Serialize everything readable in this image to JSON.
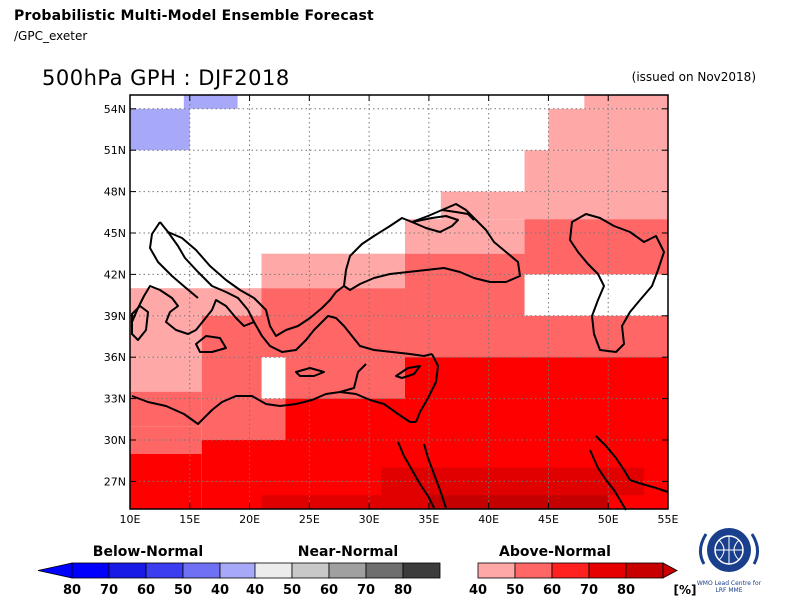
{
  "header": {
    "title": "Probabilistic Multi-Model Ensemble Forecast",
    "source": "/GPC_exeter",
    "variable_period": "500hPa GPH : DJF2018",
    "issued": "(issued on Nov2018)"
  },
  "map": {
    "lon_range": [
      10,
      55
    ],
    "lat_range": [
      25,
      55
    ],
    "lat_labels": [
      "54N",
      "51N",
      "48N",
      "45N",
      "42N",
      "39N",
      "36N",
      "33N",
      "30N",
      "27N"
    ],
    "lon_labels": [
      "10E",
      "15E",
      "20E",
      "25E",
      "30E",
      "35E",
      "40E",
      "45E",
      "50E",
      "55E"
    ],
    "grid": "dotted",
    "cells": [
      {
        "lon": [
          10,
          15
        ],
        "lat": [
          51,
          54
        ],
        "cat": "below",
        "level": "40-50"
      },
      {
        "lon": [
          14.5,
          19
        ],
        "lat": [
          54,
          55
        ],
        "cat": "below",
        "level": "40-50"
      },
      {
        "lon": [
          48,
          55
        ],
        "lat": [
          54,
          55
        ],
        "cat": "above",
        "level": "40-50"
      },
      {
        "lon": [
          45,
          55
        ],
        "lat": [
          51,
          54
        ],
        "cat": "above",
        "level": "40-50"
      },
      {
        "lon": [
          43,
          55
        ],
        "lat": [
          48,
          51
        ],
        "cat": "above",
        "level": "40-50"
      },
      {
        "lon": [
          36,
          55
        ],
        "lat": [
          46,
          48
        ],
        "cat": "above",
        "level": "40-50"
      },
      {
        "lon": [
          33,
          43
        ],
        "lat": [
          43.5,
          46
        ],
        "cat": "above",
        "level": "40-50"
      },
      {
        "lon": [
          21,
          33
        ],
        "lat": [
          41,
          43.5
        ],
        "cat": "above",
        "level": "40-50"
      },
      {
        "lon": [
          10,
          21
        ],
        "lat": [
          39,
          41
        ],
        "cat": "above",
        "level": "40-50"
      },
      {
        "lon": [
          10,
          16
        ],
        "lat": [
          33.5,
          36
        ],
        "cat": "above",
        "level": "40-50"
      },
      {
        "lon": [
          10,
          16
        ],
        "lat": [
          36,
          39
        ],
        "cat": "above",
        "level": "40-50"
      },
      {
        "lon": [
          43,
          55
        ],
        "lat": [
          42,
          46
        ],
        "cat": "above",
        "level": "50-60"
      },
      {
        "lon": [
          33,
          43
        ],
        "lat": [
          39,
          43.5
        ],
        "cat": "above",
        "level": "50-60"
      },
      {
        "lon": [
          21,
          33
        ],
        "lat": [
          36,
          41
        ],
        "cat": "above",
        "level": "50-60"
      },
      {
        "lon": [
          16,
          21
        ],
        "lat": [
          33,
          39
        ],
        "cat": "above",
        "level": "50-60"
      },
      {
        "lon": [
          10,
          16
        ],
        "lat": [
          31,
          33.5
        ],
        "cat": "above",
        "level": "50-60"
      },
      {
        "lon": [
          16,
          23
        ],
        "lat": [
          30,
          33
        ],
        "cat": "above",
        "level": "50-60"
      },
      {
        "lon": [
          10,
          16
        ],
        "lat": [
          29,
          31
        ],
        "cat": "above",
        "level": "50-60"
      },
      {
        "lon": [
          33,
          55
        ],
        "lat": [
          36,
          39
        ],
        "cat": "above",
        "level": "50-60"
      },
      {
        "lon": [
          23,
          33
        ],
        "lat": [
          33,
          36
        ],
        "cat": "above",
        "level": "50-60"
      },
      {
        "lon": [
          33,
          55
        ],
        "lat": [
          30,
          36
        ],
        "cat": "above",
        "level": "60-70"
      },
      {
        "lon": [
          23,
          33
        ],
        "lat": [
          30,
          33
        ],
        "cat": "above",
        "level": "60-70"
      },
      {
        "lon": [
          16,
          55
        ],
        "lat": [
          27,
          30
        ],
        "cat": "above",
        "level": "60-70"
      },
      {
        "lon": [
          10,
          16
        ],
        "lat": [
          25,
          29
        ],
        "cat": "above",
        "level": "60-70"
      },
      {
        "lon": [
          16,
          55
        ],
        "lat": [
          25,
          27
        ],
        "cat": "above",
        "level": "60-70"
      },
      {
        "lon": [
          31,
          53
        ],
        "lat": [
          26,
          28
        ],
        "cat": "above",
        "level": "70-80"
      },
      {
        "lon": [
          21,
          45
        ],
        "lat": [
          25,
          26
        ],
        "cat": "above",
        "level": "70-80"
      },
      {
        "lon": [
          35,
          50
        ],
        "lat": [
          25,
          26
        ],
        "cat": "above",
        "level": "80-100"
      }
    ]
  },
  "legend": {
    "below": {
      "label": "Below-Normal",
      "ticks": [
        "80",
        "70",
        "60",
        "50",
        "40"
      ],
      "colors": [
        "#0000ff",
        "#1a1ae6",
        "#3c3cf0",
        "#7070f5",
        "#a8a8f8"
      ]
    },
    "near": {
      "label": "Near-Normal",
      "ticks": [
        "40",
        "50",
        "60",
        "70",
        "80"
      ],
      "colors": [
        "#ececec",
        "#c8c8c8",
        "#a0a0a0",
        "#6e6e6e",
        "#3c3c3c"
      ]
    },
    "above": {
      "label": "Above-Normal",
      "ticks": [
        "40",
        "50",
        "60",
        "70",
        "80"
      ],
      "unit": "[%]",
      "colors": [
        "#ffa8a8",
        "#ff6666",
        "#ff2020",
        "#e60000",
        "#c80000"
      ]
    }
  },
  "colors": {
    "below-40-50": "#a8a8f8",
    "above-40-50": "#ffa8a8",
    "above-50-60": "#ff6666",
    "above-60-70": "#ff0000",
    "above-70-80": "#e00000",
    "above-80-100": "#c40000"
  },
  "logo": {
    "line1": "WMO Lead Centre for",
    "line2": "LRF MME"
  }
}
